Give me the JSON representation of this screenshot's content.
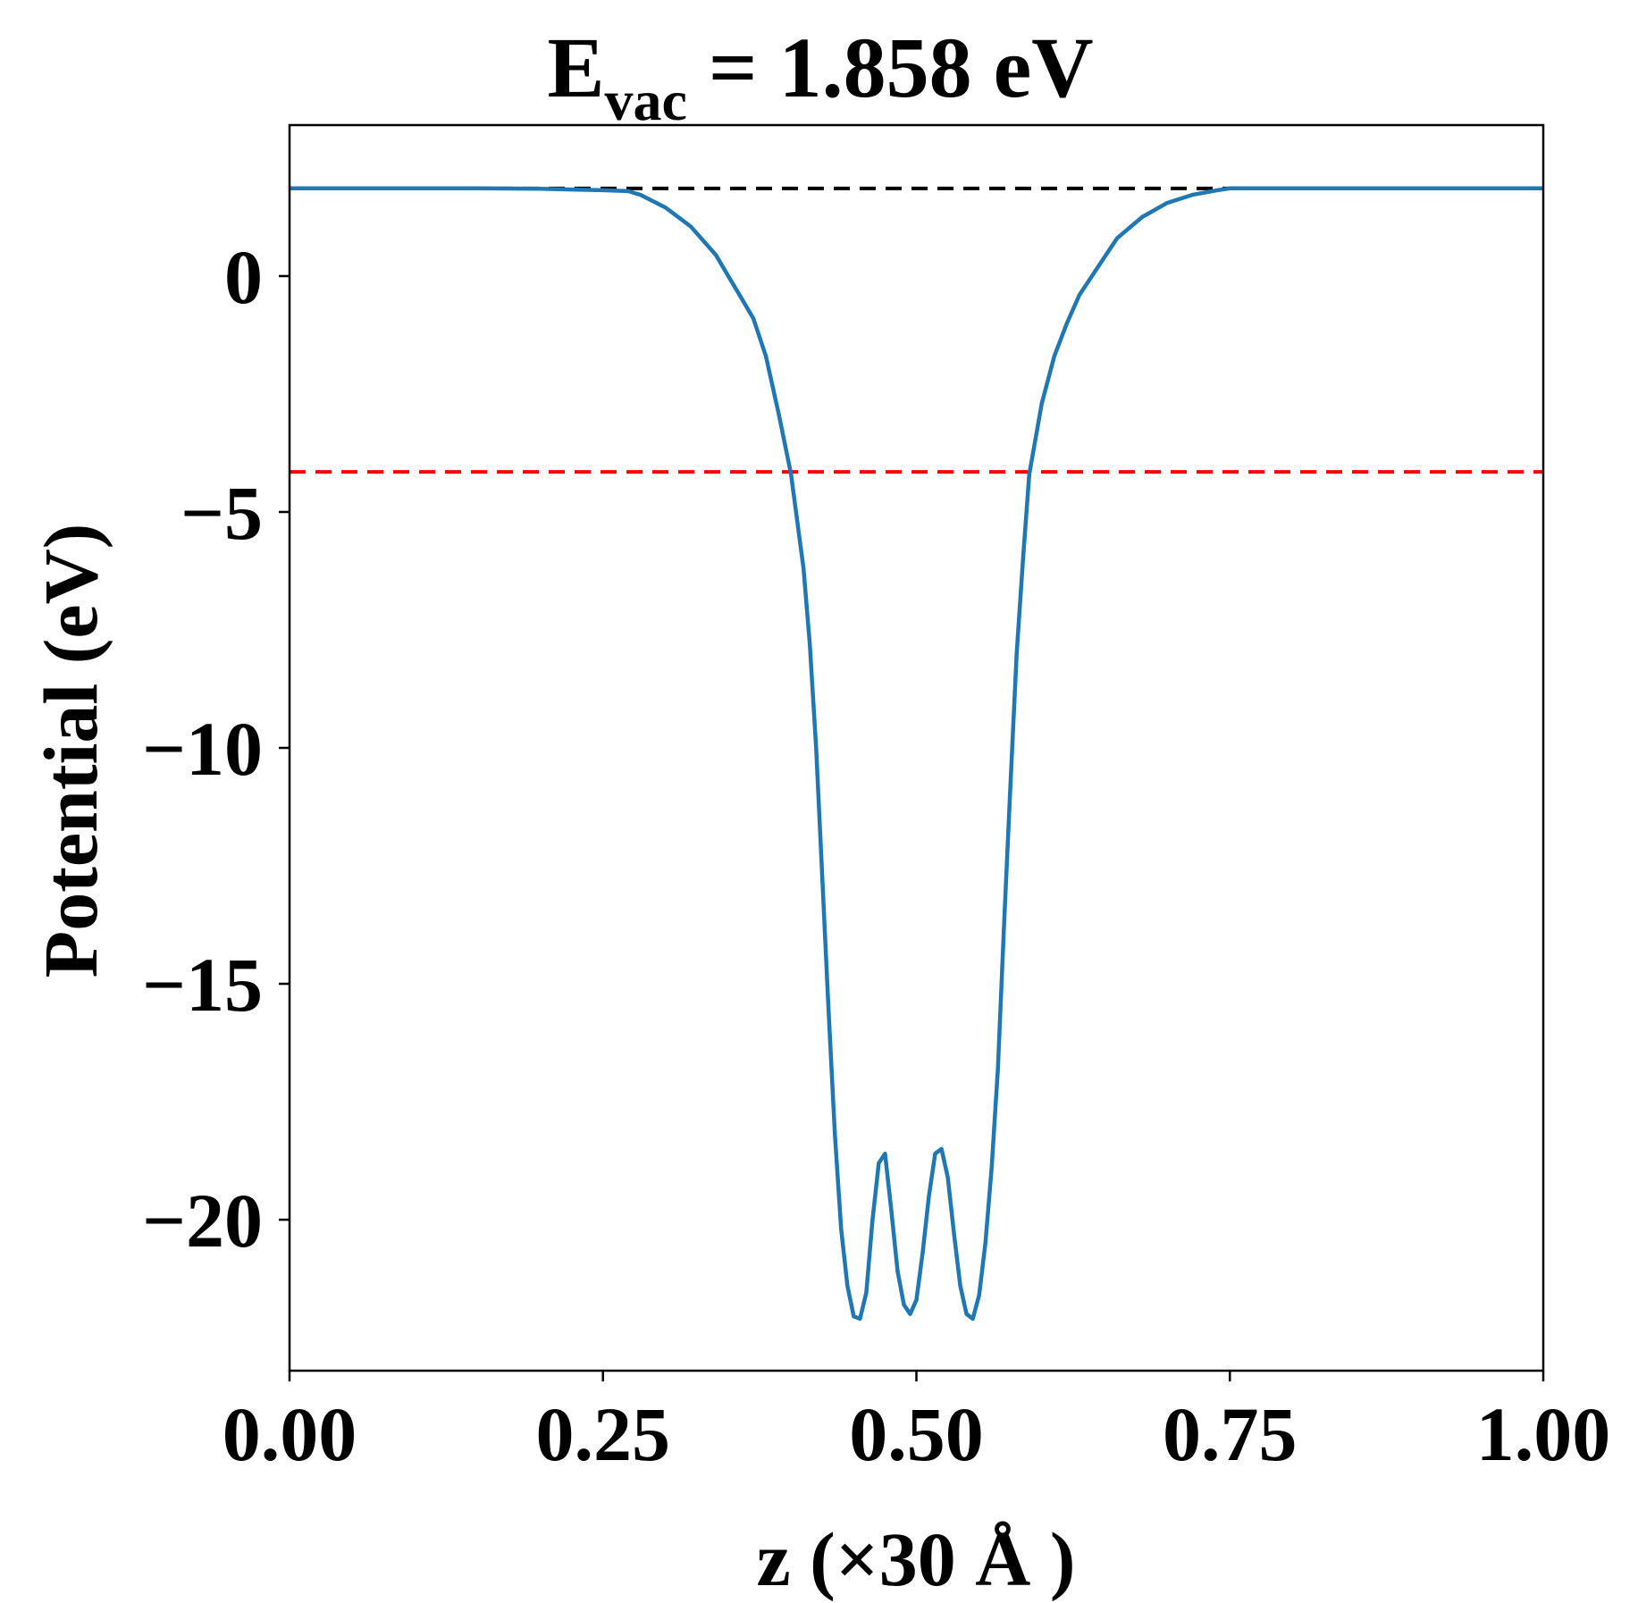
{
  "chart_data": {
    "type": "line",
    "title_main": "E",
    "title_sub": "vac",
    "title_rest": " = 1.858 eV",
    "xlabel": "z (×30 Å )",
    "ylabel": "Potential (eV)",
    "xlim": [
      0.0,
      1.0
    ],
    "ylim": [
      -23.2,
      3.2
    ],
    "xticks": [
      0.0,
      0.25,
      0.5,
      0.75,
      1.0
    ],
    "xtick_labels": [
      "0.00",
      "0.25",
      "0.50",
      "0.75",
      "1.00"
    ],
    "yticks": [
      0,
      -5,
      -10,
      -15,
      -20
    ],
    "ytick_labels": [
      "0",
      "−5",
      "−10",
      "−15",
      "−20"
    ],
    "vacuum_level": 1.858,
    "reference_level": -4.15,
    "colors": {
      "potential": "#1f77b4",
      "vacuum_line": "#000000",
      "reference_line": "#ff0000"
    },
    "grid": false,
    "legend": "none",
    "series": [
      {
        "x": [
          0.0,
          0.05,
          0.1,
          0.15,
          0.2,
          0.25,
          0.27,
          0.28,
          0.3,
          0.32,
          0.34,
          0.35,
          0.36,
          0.37,
          0.38,
          0.39,
          0.4,
          0.41,
          0.415,
          0.42,
          0.425,
          0.43,
          0.435,
          0.44,
          0.445,
          0.45,
          0.455,
          0.46,
          0.465,
          0.47,
          0.475,
          0.48,
          0.485,
          0.49,
          0.495,
          0.5,
          0.505,
          0.51,
          0.515,
          0.52,
          0.525,
          0.53,
          0.535,
          0.54,
          0.545,
          0.55,
          0.555,
          0.56,
          0.565,
          0.57,
          0.575,
          0.58,
          0.585,
          0.59,
          0.6,
          0.61,
          0.62,
          0.63,
          0.64,
          0.65,
          0.66,
          0.68,
          0.7,
          0.72,
          0.74,
          0.75,
          0.8,
          0.85,
          0.9,
          0.95,
          1.0
        ],
        "y": [
          1.86,
          1.86,
          1.86,
          1.86,
          1.85,
          1.82,
          1.8,
          1.72,
          1.45,
          1.05,
          0.45,
          0.0,
          -0.45,
          -0.9,
          -1.7,
          -2.9,
          -4.2,
          -6.2,
          -7.8,
          -10.0,
          -12.8,
          -15.6,
          -18.2,
          -20.2,
          -21.4,
          -22.05,
          -22.1,
          -21.55,
          -20.0,
          -18.8,
          -18.6,
          -19.8,
          -21.1,
          -21.8,
          -22.0,
          -21.7,
          -20.7,
          -19.5,
          -18.6,
          -18.5,
          -19.1,
          -20.3,
          -21.4,
          -22.0,
          -22.1,
          -21.6,
          -20.5,
          -18.9,
          -16.8,
          -13.7,
          -10.8,
          -8.0,
          -6.0,
          -4.2,
          -2.7,
          -1.7,
          -1.0,
          -0.4,
          0.0,
          0.4,
          0.8,
          1.25,
          1.55,
          1.72,
          1.82,
          1.86,
          1.86,
          1.86,
          1.86,
          1.86,
          1.86
        ]
      }
    ]
  }
}
